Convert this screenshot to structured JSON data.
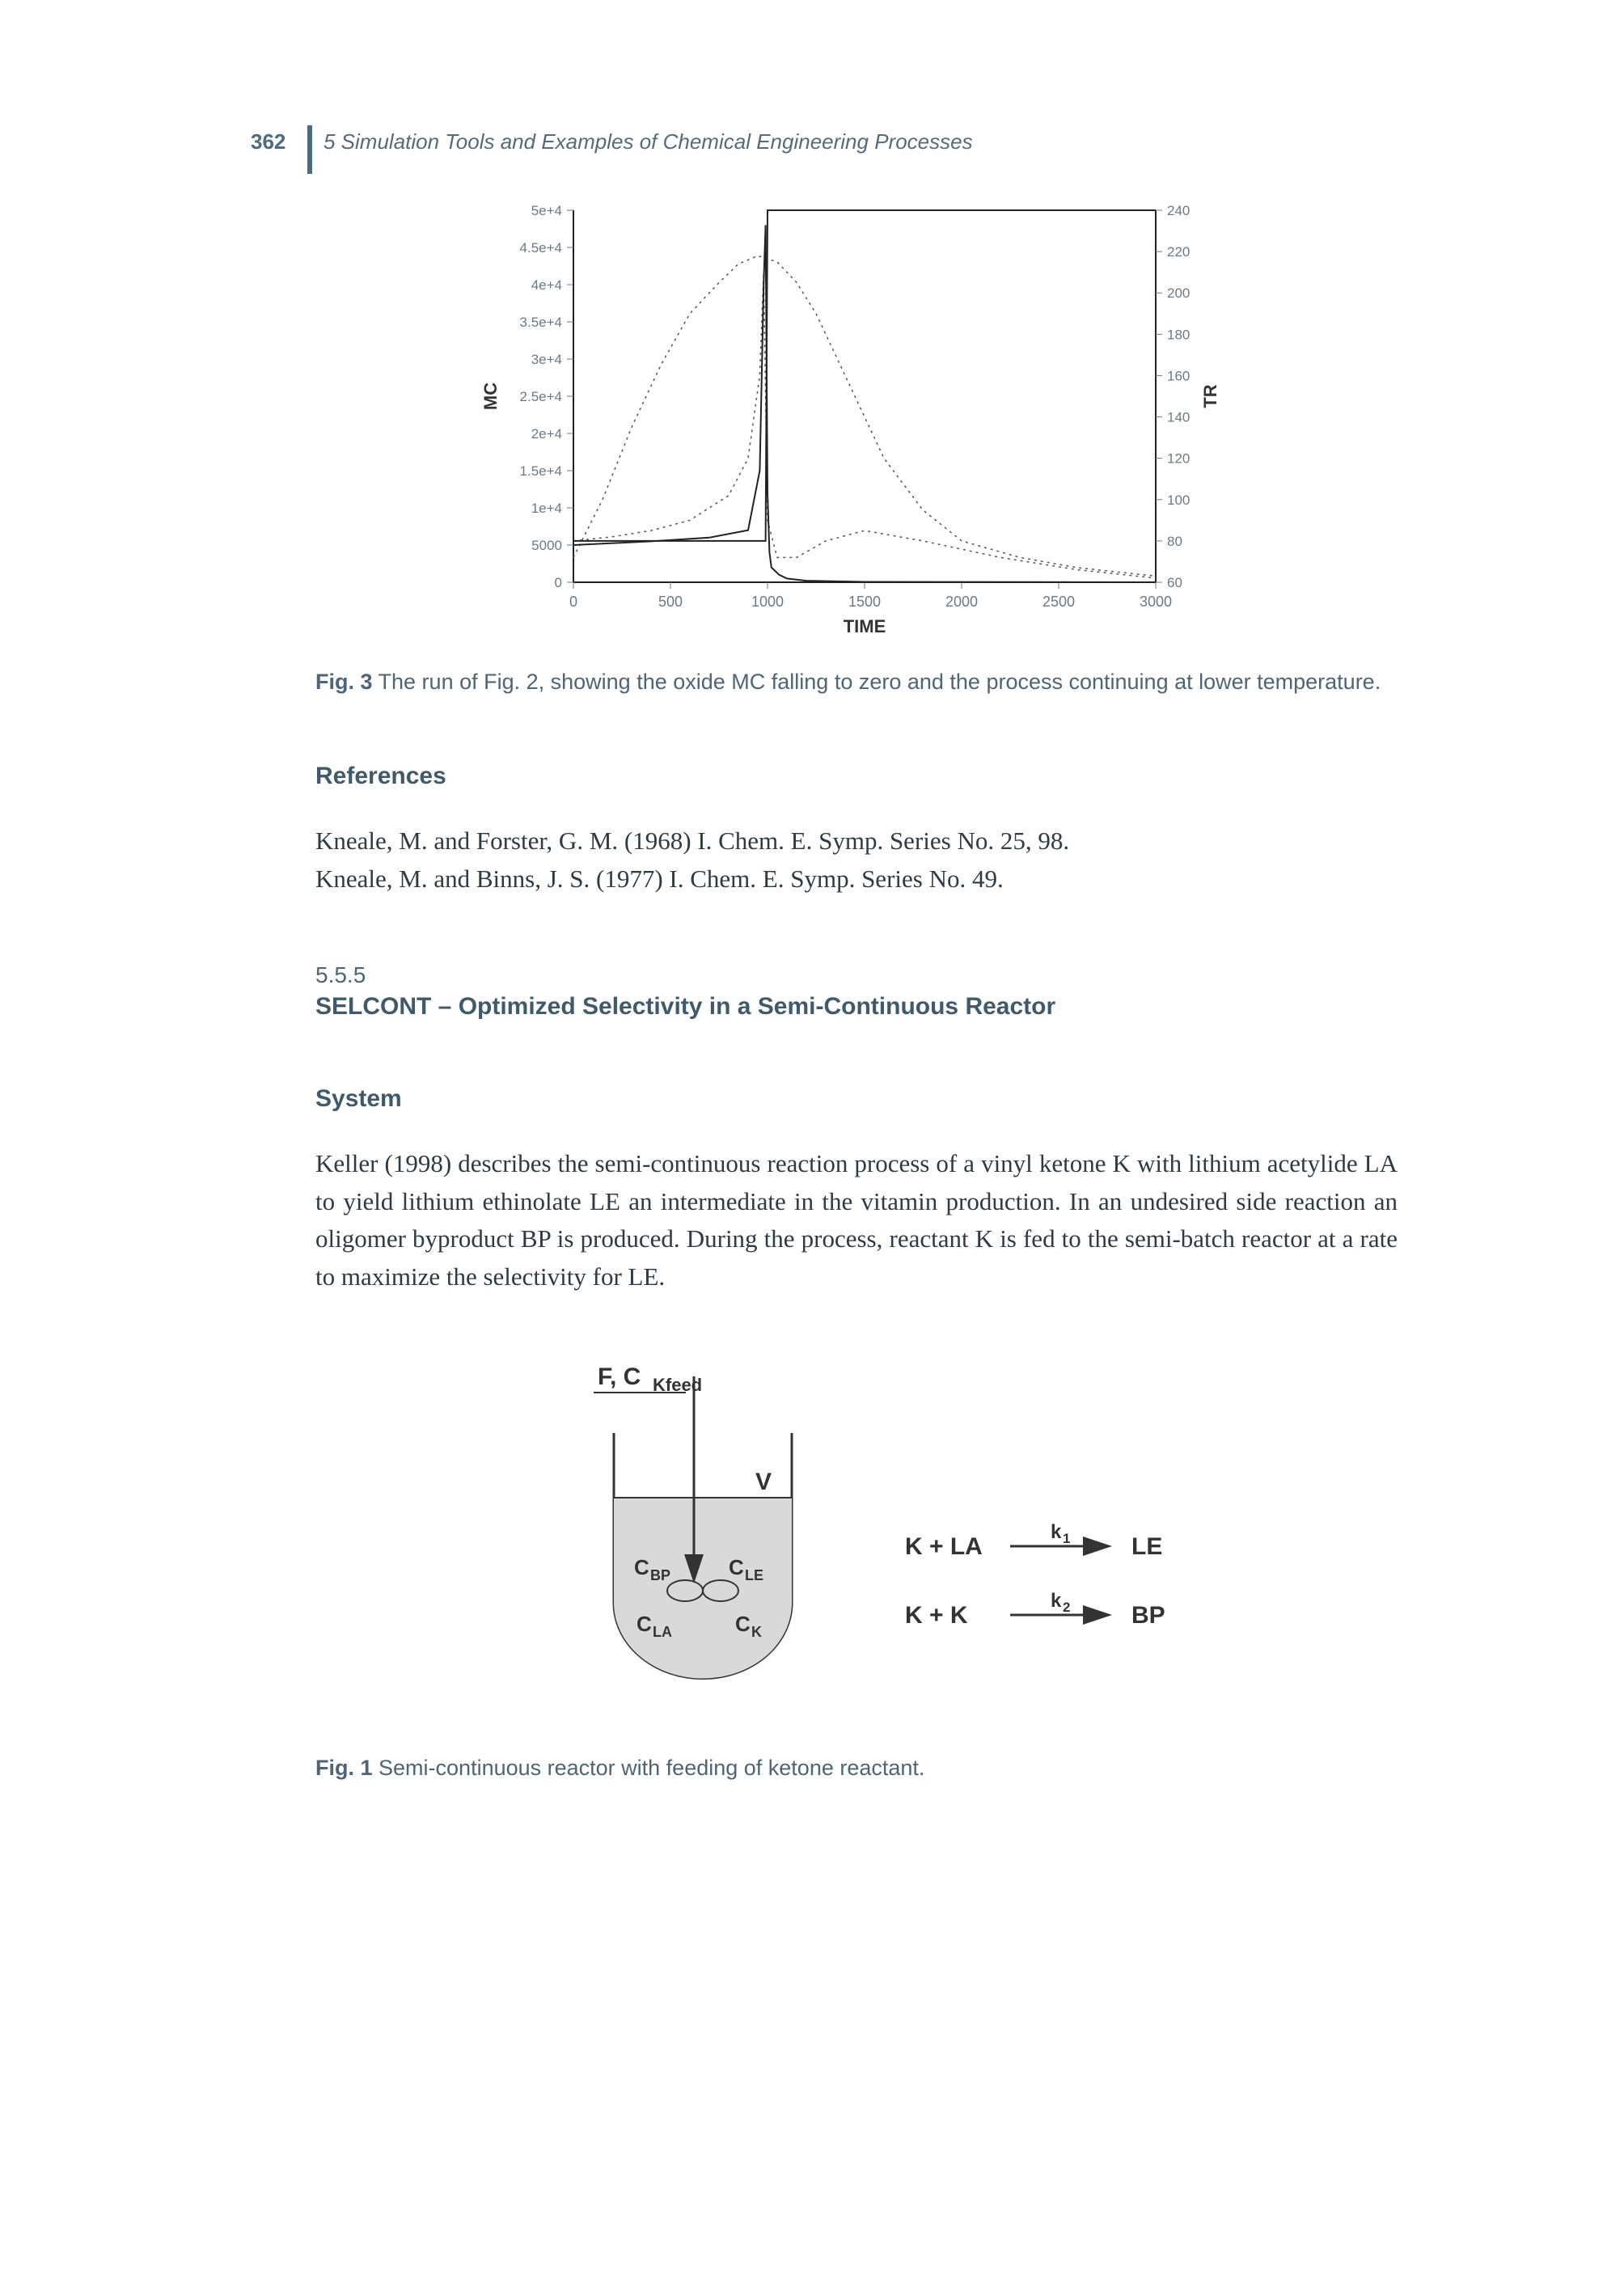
{
  "page_number": "362",
  "running_head": "5  Simulation Tools and Examples of Chemical Engineering Processes",
  "colors": {
    "accent": "#4a6b82",
    "text_serif": "#2d3b44",
    "text_sans": "#4e6575",
    "chart_axis": "#6a7a85",
    "chart_black": "#222222",
    "dotted": "#555555",
    "background": "#ffffff",
    "reactor_fill": "#d9d9d9",
    "reactor_stroke": "#333333"
  },
  "typography": {
    "serif_family": "Georgia",
    "sans_family": "Arial",
    "body_size_pt": 23,
    "caption_size_pt": 20,
    "heading_size_pt": 22,
    "axis_tick_size_pt": 14
  },
  "fig3": {
    "type": "line",
    "x_label": "TIME",
    "left_y_label": "MC",
    "right_y_label": "TR",
    "xlim": [
      0,
      3000
    ],
    "xtick_step": 500,
    "xticks": [
      0,
      500,
      1000,
      1500,
      2000,
      2500,
      3000
    ],
    "left_ylim": [
      0,
      50000
    ],
    "left_yticks": [
      0,
      5000,
      10000,
      15000,
      20000,
      25000,
      30000,
      35000,
      40000,
      45000,
      50000
    ],
    "left_yticklabels": [
      "0",
      "5000",
      "1e+4",
      "1.5e+4",
      "2e+4",
      "2.5e+4",
      "3e+4",
      "3.5e+4",
      "4e+4",
      "4.5e+4",
      "5e+4"
    ],
    "right_ylim": [
      60,
      240
    ],
    "right_ytick_step": 20,
    "right_yticks": [
      60,
      80,
      100,
      120,
      140,
      160,
      180,
      200,
      220,
      240
    ],
    "series": {
      "mc_solid": {
        "axis": "left",
        "style": "solid",
        "color": "#222222",
        "line_width": 2,
        "points": [
          [
            0,
            5000
          ],
          [
            400,
            5500
          ],
          [
            700,
            6000
          ],
          [
            900,
            7000
          ],
          [
            960,
            15000
          ],
          [
            980,
            40000
          ],
          [
            990,
            48000
          ],
          [
            1000,
            12000
          ],
          [
            1010,
            4000
          ],
          [
            1020,
            2000
          ],
          [
            1060,
            1000
          ],
          [
            1100,
            500
          ],
          [
            1200,
            200
          ],
          [
            1500,
            50
          ],
          [
            3000,
            0
          ]
        ]
      },
      "tr_solid": {
        "axis": "right",
        "style": "solid",
        "color": "#222222",
        "line_width": 2,
        "points": [
          [
            0,
            80
          ],
          [
            990,
            80
          ],
          [
            1000,
            240
          ],
          [
            1010,
            240
          ],
          [
            3000,
            240
          ]
        ]
      },
      "dotted1": {
        "axis": "right",
        "style": "dotted",
        "color": "#555555",
        "line_width": 1.5,
        "points": [
          [
            0,
            72
          ],
          [
            150,
            100
          ],
          [
            300,
            135
          ],
          [
            450,
            165
          ],
          [
            600,
            190
          ],
          [
            750,
            205
          ],
          [
            850,
            214
          ],
          [
            950,
            218
          ],
          [
            1050,
            215
          ],
          [
            1150,
            205
          ],
          [
            1250,
            190
          ],
          [
            1400,
            160
          ],
          [
            1600,
            120
          ],
          [
            1800,
            95
          ],
          [
            2000,
            80
          ],
          [
            2300,
            72
          ],
          [
            2600,
            67
          ],
          [
            3000,
            63
          ]
        ]
      },
      "dotted2": {
        "axis": "right",
        "style": "dotted",
        "color": "#555555",
        "line_width": 1.5,
        "points": [
          [
            0,
            80
          ],
          [
            200,
            82
          ],
          [
            400,
            85
          ],
          [
            600,
            90
          ],
          [
            800,
            102
          ],
          [
            900,
            120
          ],
          [
            960,
            160
          ],
          [
            980,
            210
          ],
          [
            1000,
            90
          ],
          [
            1050,
            72
          ],
          [
            1150,
            72
          ],
          [
            1300,
            80
          ],
          [
            1500,
            85
          ],
          [
            1800,
            80
          ],
          [
            2200,
            72
          ],
          [
            2600,
            66
          ],
          [
            3000,
            62
          ]
        ]
      }
    },
    "background_color": "#ffffff"
  },
  "fig3_caption": {
    "label": "Fig. 3",
    "text": "The run of Fig. 2, showing the oxide MC falling to zero and the process continuing at lower temperature."
  },
  "references": {
    "heading": "References",
    "items": [
      "Kneale, M. and Forster, G. M. (1968) I. Chem. E. Symp. Series No. 25, 98.",
      "Kneale, M. and Binns, J. S. (1977) I. Chem. E. Symp. Series No. 49."
    ]
  },
  "section": {
    "number": "5.5.5",
    "title": "SELCONT – Optimized Selectivity in a Semi-Continuous Reactor"
  },
  "system": {
    "heading": "System",
    "paragraph": "Keller (1998) describes the semi-continuous reaction process of a vinyl ketone K with lithium acetylide LA to yield lithium ethinolate LE an intermediate in the vitamin production. In an undesired side reaction an oligomer byproduct BP is produced. During the process, reactant K is fed to the semi-batch reactor at a rate to maximize the selectivity for LE."
  },
  "fig1": {
    "type": "infographic",
    "feed_label": "F, C",
    "feed_subscript": "Kfeed",
    "volume_label": "V",
    "species_labels": [
      "CBP",
      "CLE",
      "CLA",
      "CK"
    ],
    "reactions": [
      {
        "lhs": "K + LA",
        "rate": "k1",
        "rhs": "LE"
      },
      {
        "lhs": "K + K",
        "rate": "k2",
        "rhs": "BP"
      }
    ],
    "reactor": {
      "fill_color": "#d9d9d9",
      "stroke_color": "#333333",
      "stroke_width": 3
    }
  },
  "fig1_caption": {
    "label": "Fig. 1",
    "text": "Semi-continuous reactor with feeding of ketone reactant."
  }
}
